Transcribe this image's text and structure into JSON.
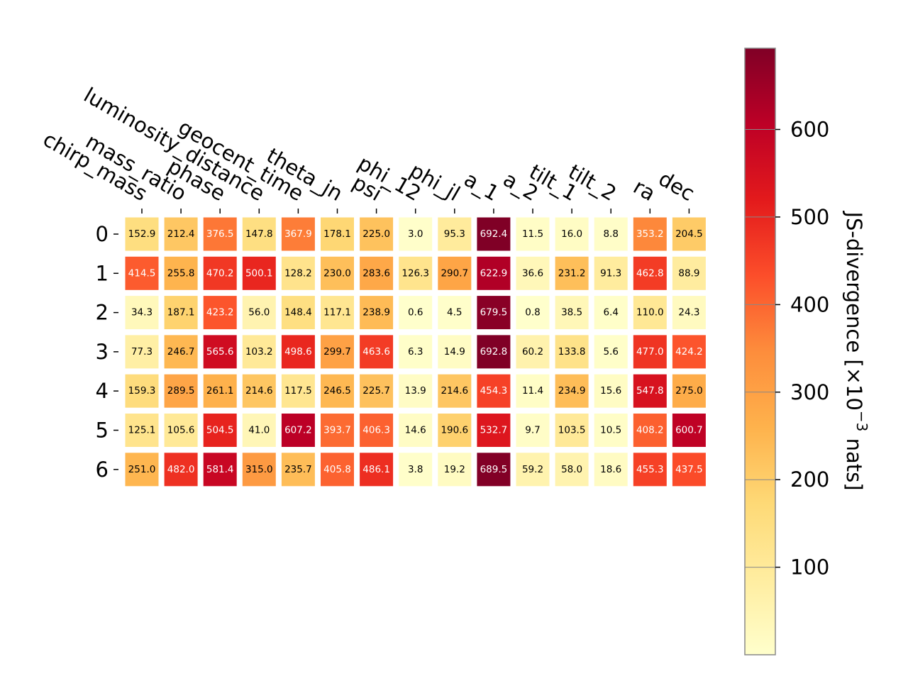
{
  "chart_data": {
    "type": "heatmap",
    "title": "",
    "xlabel": "",
    "ylabel": "",
    "columns": [
      "chirp_mass",
      "mass_ratio",
      "phase",
      "luminosity_distance",
      "geocent_time",
      "theta_jn",
      "psi",
      "phi_12",
      "phi_jl",
      "a_1",
      "a_2",
      "tilt_1",
      "tilt_2",
      "ra",
      "dec"
    ],
    "rows": [
      "0",
      "1",
      "2",
      "3",
      "4",
      "5",
      "6"
    ],
    "values": [
      [
        152.9,
        212.4,
        376.5,
        147.8,
        367.9,
        178.1,
        225.0,
        3.0,
        95.3,
        692.4,
        11.5,
        16.0,
        8.8,
        353.2,
        204.5
      ],
      [
        414.5,
        255.8,
        470.2,
        500.1,
        128.2,
        230.0,
        283.6,
        126.3,
        290.7,
        622.9,
        36.6,
        231.2,
        91.3,
        462.8,
        88.9
      ],
      [
        34.3,
        187.1,
        423.2,
        56.0,
        148.4,
        117.1,
        238.9,
        0.6,
        4.5,
        679.5,
        0.8,
        38.5,
        6.4,
        110.0,
        24.3
      ],
      [
        77.3,
        246.7,
        565.6,
        103.2,
        498.6,
        299.7,
        463.6,
        6.3,
        14.9,
        692.8,
        60.2,
        133.8,
        5.6,
        477.0,
        424.2
      ],
      [
        159.3,
        289.5,
        261.1,
        214.6,
        117.5,
        246.5,
        225.7,
        13.9,
        214.6,
        454.3,
        11.4,
        234.9,
        15.6,
        547.8,
        275.0
      ],
      [
        125.1,
        105.6,
        504.5,
        41.0,
        607.2,
        393.7,
        406.3,
        14.6,
        190.6,
        532.7,
        9.7,
        103.5,
        10.5,
        408.2,
        600.7
      ],
      [
        251.0,
        482.0,
        581.4,
        315.0,
        235.7,
        405.8,
        486.1,
        3.8,
        19.2,
        689.5,
        59.2,
        58.0,
        18.6,
        455.3,
        437.5
      ]
    ],
    "colorbar": {
      "label": "JS-divergence [×10",
      "label_exponent": "−3",
      "label_suffix": " nats]",
      "ticks": [
        "100",
        "200",
        "300",
        "400",
        "500",
        "600"
      ],
      "tick_values": [
        100,
        200,
        300,
        400,
        500,
        600
      ],
      "range": [
        0,
        692.8
      ],
      "colormap": [
        "#ffffcc",
        "#ffeda0",
        "#fed976",
        "#feb24c",
        "#fd8d3c",
        "#fc4e2a",
        "#e31a1c",
        "#bd0026",
        "#800026"
      ]
    },
    "text_color_threshold": 346.4,
    "grid": false,
    "legend": "colorbar-right"
  }
}
